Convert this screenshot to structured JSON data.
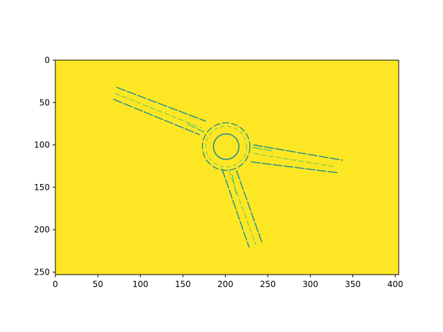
{
  "chart_data": {
    "type": "heatmap",
    "title": "",
    "xlabel": "",
    "ylabel": "",
    "image_shape": [
      253,
      404
    ],
    "xlim": [
      0,
      404
    ],
    "ylim": [
      253,
      0
    ],
    "y_inverted": true,
    "x_ticks": [
      0,
      50,
      100,
      150,
      200,
      250,
      300,
      350,
      400
    ],
    "y_ticks": [
      0,
      50,
      100,
      150,
      200,
      250
    ],
    "x_tick_labels": [
      "0",
      "50",
      "100",
      "150",
      "200",
      "250",
      "300",
      "350",
      "400"
    ],
    "y_tick_labels": [
      "0",
      "50",
      "100",
      "150",
      "200",
      "250"
    ],
    "colormap": "viridis",
    "colors": {
      "background": "#fde725",
      "edge_dark": "#21918c",
      "edge_light": "#5ec962"
    },
    "grid": false,
    "legend": "none",
    "description_of_content": "edge map of a roundabout junction with three approach roads",
    "features": {
      "roundabout_outer_center": [
        201,
        102
      ],
      "roundabout_outer_radius": 28,
      "central_island_radius": 15,
      "roads": [
        {
          "name": "west-north-west approach",
          "edges": [
            [
              [
                72,
                32
              ],
              [
                177,
                72
              ]
            ],
            [
              [
                70,
                39
              ],
              [
                172,
                80
              ]
            ],
            [
              [
                68,
                46
              ],
              [
                170,
                88
              ]
            ],
            [
              [
                155,
                75
              ],
              [
                175,
                85
              ]
            ]
          ]
        },
        {
          "name": "east approach",
          "edges": [
            [
              [
                233,
                100
              ],
              [
                338,
                118
              ]
            ],
            [
              [
                233,
                110
              ],
              [
                330,
                126
              ]
            ],
            [
              [
                230,
                120
              ],
              [
                333,
                133
              ]
            ],
            [
              [
                232,
                103
              ],
              [
                255,
                107
              ]
            ]
          ]
        },
        {
          "name": "south-south-east approach",
          "edges": [
            [
              [
                196,
                128
              ],
              [
                228,
                221
              ]
            ],
            [
              [
                204,
                130
              ],
              [
                236,
                218
              ]
            ],
            [
              [
                213,
                130
              ],
              [
                243,
                215
              ]
            ],
            [
              [
                208,
                135
              ],
              [
                213,
                158
              ]
            ]
          ]
        }
      ]
    }
  }
}
